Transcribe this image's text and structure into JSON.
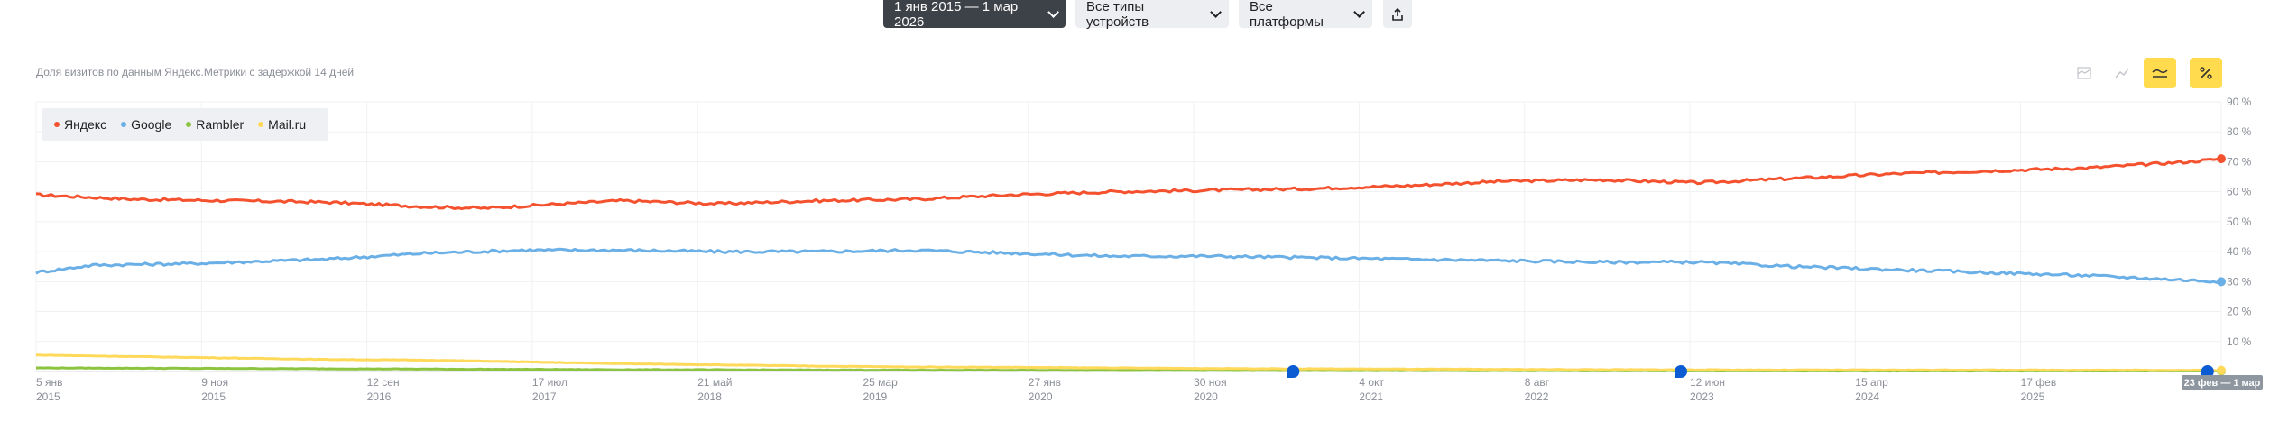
{
  "toolbar": {
    "date_range": "1 янв 2015 — 1 мар 2026",
    "devices": "Все типы устройств",
    "platforms": "Все платформы",
    "share_icon": "share-icon"
  },
  "subtitle": "Доля визитов по данным Яндекс.Метрики с задержкой 14 дней",
  "controls": [
    {
      "name": "stacked-area-icon",
      "active": false
    },
    {
      "name": "line-chart-icon",
      "active": false
    },
    {
      "name": "smooth-line-icon",
      "active": true
    },
    {
      "name": "percent-icon",
      "active": true
    }
  ],
  "chart_data": {
    "type": "line",
    "x_tick_labels": [
      [
        "5 янв",
        "2015"
      ],
      [
        "9 ноя",
        "2015"
      ],
      [
        "12 сен",
        "2016"
      ],
      [
        "17 июл",
        "2017"
      ],
      [
        "21 май",
        "2018"
      ],
      [
        "25 мар",
        "2019"
      ],
      [
        "27 янв",
        "2020"
      ],
      [
        "30 ноя",
        "2020"
      ],
      [
        "4 окт",
        "2021"
      ],
      [
        "8 авг",
        "2022"
      ],
      [
        "12 июн",
        "2023"
      ],
      [
        "15 апр",
        "2024"
      ],
      [
        "17 фев",
        "2025"
      ]
    ],
    "y_ticks": [
      "10 %",
      "20 %",
      "30 %",
      "40 %",
      "50 %",
      "60 %",
      "70 %",
      "80 %",
      "90 %"
    ],
    "ylim": [
      0,
      90
    ],
    "x_range": [
      "2015-01-05",
      "2026-03-01"
    ],
    "highlight_label": "23 фев — 1 мар",
    "legend_position": "top-left",
    "grid": true,
    "series": [
      {
        "name": "Яндекс",
        "color": "#f4512f",
        "values": [
          [
            2015.0,
            59
          ],
          [
            2015.5,
            57.5
          ],
          [
            2016.0,
            57
          ],
          [
            2016.5,
            56.5
          ],
          [
            2017.0,
            55
          ],
          [
            2017.3,
            54.5
          ],
          [
            2017.7,
            56
          ],
          [
            2018.0,
            57
          ],
          [
            2018.5,
            56
          ],
          [
            2019.0,
            57
          ],
          [
            2019.5,
            57.5
          ],
          [
            2020.0,
            59
          ],
          [
            2020.5,
            60
          ],
          [
            2021.0,
            60.5
          ],
          [
            2021.5,
            61
          ],
          [
            2022.0,
            62
          ],
          [
            2022.5,
            63.5
          ],
          [
            2023.0,
            64
          ],
          [
            2023.5,
            63
          ],
          [
            2024.0,
            64.5
          ],
          [
            2024.5,
            66
          ],
          [
            2025.0,
            67
          ],
          [
            2025.5,
            68
          ],
          [
            2026.0,
            70
          ],
          [
            2026.17,
            71
          ]
        ]
      },
      {
        "name": "Google",
        "color": "#6aafe6",
        "values": [
          [
            2015.0,
            33
          ],
          [
            2015.3,
            35.5
          ],
          [
            2015.8,
            36
          ],
          [
            2016.5,
            37.5
          ],
          [
            2017.0,
            39.5
          ],
          [
            2017.5,
            40.5
          ],
          [
            2018.0,
            40.5
          ],
          [
            2018.5,
            40
          ],
          [
            2019.0,
            40
          ],
          [
            2019.5,
            40.5
          ],
          [
            2020.0,
            39.5
          ],
          [
            2020.5,
            38.5
          ],
          [
            2021.0,
            38.5
          ],
          [
            2021.5,
            38
          ],
          [
            2022.0,
            37.5
          ],
          [
            2022.5,
            37
          ],
          [
            2023.0,
            36.5
          ],
          [
            2023.5,
            36.5
          ],
          [
            2024.0,
            35
          ],
          [
            2024.5,
            34
          ],
          [
            2025.0,
            33
          ],
          [
            2025.5,
            32
          ],
          [
            2026.0,
            30.5
          ],
          [
            2026.17,
            30
          ]
        ]
      },
      {
        "name": "Rambler",
        "color": "#8cc43f",
        "values": [
          [
            2015.0,
            1.2
          ],
          [
            2016.0,
            1.0
          ],
          [
            2017.0,
            0.8
          ],
          [
            2018.0,
            0.6
          ],
          [
            2019.0,
            0.5
          ],
          [
            2020.0,
            0.4
          ],
          [
            2021.0,
            0.35
          ],
          [
            2022.0,
            0.3
          ],
          [
            2023.0,
            0.25
          ],
          [
            2024.0,
            0.2
          ],
          [
            2025.0,
            0.2
          ],
          [
            2026.17,
            0.2
          ]
        ]
      },
      {
        "name": "Mail.ru",
        "color": "#ffd95a",
        "values": [
          [
            2015.0,
            5.5
          ],
          [
            2015.5,
            5
          ],
          [
            2016.0,
            4.5
          ],
          [
            2016.5,
            4
          ],
          [
            2017.0,
            3.8
          ],
          [
            2017.5,
            3.2
          ],
          [
            2018.0,
            2.6
          ],
          [
            2018.5,
            2.2
          ],
          [
            2019.0,
            1.8
          ],
          [
            2019.5,
            1.5
          ],
          [
            2020.0,
            1.4
          ],
          [
            2020.5,
            1.2
          ],
          [
            2021.0,
            1.0
          ],
          [
            2021.5,
            0.9
          ],
          [
            2022.0,
            0.8
          ],
          [
            2022.5,
            0.7
          ],
          [
            2023.0,
            0.6
          ],
          [
            2024.0,
            0.5
          ],
          [
            2025.0,
            0.5
          ],
          [
            2026.17,
            0.4
          ]
        ]
      }
    ],
    "annotation_markers": [
      2021.43,
      2023.41,
      2026.1
    ]
  }
}
